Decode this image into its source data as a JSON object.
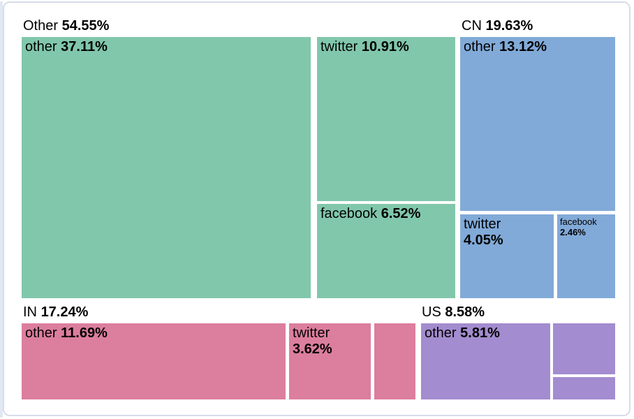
{
  "chart_data": {
    "type": "treemap",
    "title": "",
    "unit": "percent",
    "legend": "none",
    "total": 100.0,
    "groups": [
      {
        "name": "Other",
        "pct_label": "54.55%",
        "value": 54.55,
        "color": "#81c7ac",
        "children": [
          {
            "name": "other",
            "pct_label": "37.11%",
            "value": 37.11,
            "label_visible": true
          },
          {
            "name": "twitter",
            "pct_label": "10.91%",
            "value": 10.91,
            "label_visible": true
          },
          {
            "name": "facebook",
            "pct_label": "6.52%",
            "value": 6.52,
            "label_visible": true
          }
        ]
      },
      {
        "name": "CN",
        "pct_label": "19.63%",
        "value": 19.63,
        "color": "#81aad8",
        "children": [
          {
            "name": "other",
            "pct_label": "13.12%",
            "value": 13.12,
            "label_visible": true
          },
          {
            "name": "twitter",
            "pct_label": "4.05%",
            "value": 4.05,
            "label_visible": true
          },
          {
            "name": "facebook",
            "pct_label": "2.46%",
            "value": 2.46,
            "label_visible": true
          }
        ]
      },
      {
        "name": "IN",
        "pct_label": "17.24%",
        "value": 17.24,
        "color": "#dc7e9e",
        "children": [
          {
            "name": "other",
            "pct_label": "11.69%",
            "value": 11.69,
            "label_visible": true
          },
          {
            "name": "twitter",
            "pct_label": "3.62%",
            "value": 3.62,
            "label_visible": true
          },
          {
            "name": "",
            "pct_label": "",
            "value": 1.93,
            "label_visible": false,
            "value_estimated": true
          }
        ]
      },
      {
        "name": "US",
        "pct_label": "8.58%",
        "value": 8.58,
        "color": "#a38ccf",
        "children": [
          {
            "name": "other",
            "pct_label": "5.81%",
            "value": 5.81,
            "label_visible": true
          },
          {
            "name": "",
            "pct_label": "",
            "value": 1.9,
            "label_visible": false,
            "value_estimated": true
          },
          {
            "name": "",
            "pct_label": "",
            "value": 0.87,
            "label_visible": false,
            "value_estimated": true
          }
        ]
      }
    ]
  }
}
